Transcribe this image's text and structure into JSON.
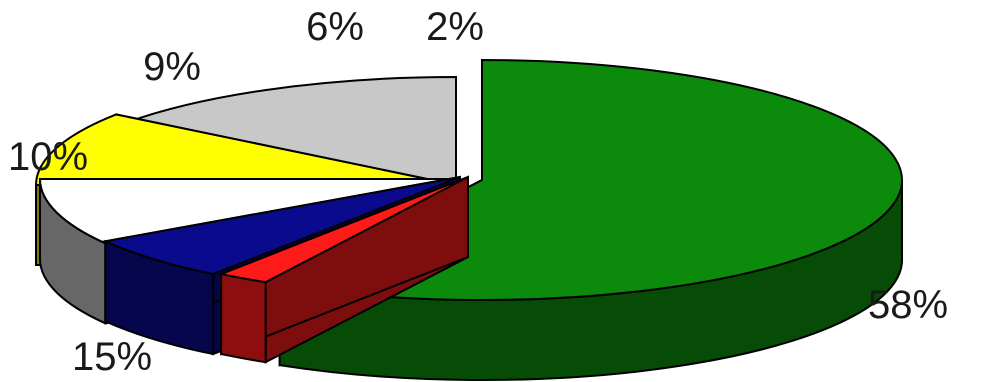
{
  "chart_data": {
    "type": "pie",
    "style": "3d-exploded",
    "slices": [
      {
        "label": "58%",
        "value": 58,
        "color": "#0b8a0b"
      },
      {
        "label": "2%",
        "value": 2,
        "color": "#ff1a1a"
      },
      {
        "label": "6%",
        "value": 6,
        "color": "#0a0a8c"
      },
      {
        "label": "9%",
        "value": 9,
        "color": "#ffffff"
      },
      {
        "label": "10%",
        "value": 10,
        "color": "#ffff00"
      },
      {
        "label": "15%",
        "value": 15,
        "color": "#c8c8c8"
      }
    ]
  }
}
